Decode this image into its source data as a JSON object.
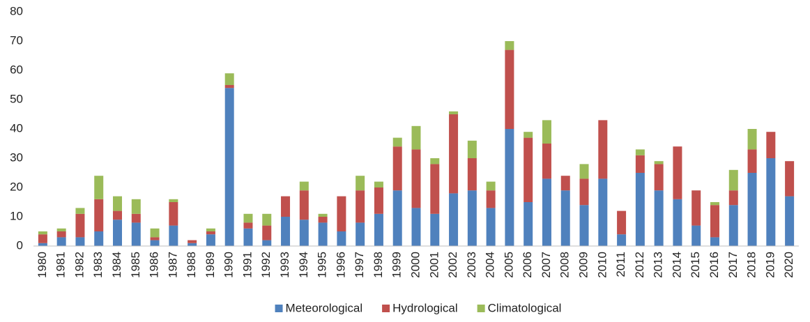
{
  "chart_data": {
    "type": "stacked-bar",
    "categories": [
      "1980",
      "1981",
      "1982",
      "1983",
      "1984",
      "1985",
      "1986",
      "1987",
      "1988",
      "1989",
      "1990",
      "1991",
      "1992",
      "1993",
      "1994",
      "1995",
      "1996",
      "1997",
      "1998",
      "1999",
      "2000",
      "2001",
      "2002",
      "2003",
      "2004",
      "2005",
      "2006",
      "2007",
      "2008",
      "2009",
      "2010",
      "2011",
      "2012",
      "2013",
      "2014",
      "2015",
      "2016",
      "2017",
      "2018",
      "2019",
      "2020"
    ],
    "series": [
      {
        "name": "Meteorological",
        "color": "#4f81bd",
        "values": [
          1,
          3,
          3,
          5,
          9,
          8,
          2,
          7,
          1,
          4,
          54,
          6,
          2,
          10,
          9,
          8,
          5,
          8,
          11,
          19,
          13,
          11,
          18,
          19,
          13,
          40,
          15,
          23,
          19,
          14,
          23,
          4,
          25,
          19,
          16,
          7,
          3,
          14,
          25,
          30,
          17
        ]
      },
      {
        "name": "Hydrological",
        "color": "#c0504d",
        "values": [
          3,
          2,
          8,
          11,
          3,
          3,
          1,
          8,
          1,
          1,
          1,
          2,
          5,
          7,
          10,
          2,
          12,
          11,
          9,
          15,
          20,
          17,
          27,
          11,
          6,
          27,
          22,
          12,
          5,
          9,
          20,
          8,
          6,
          9,
          18,
          12,
          11,
          5,
          8,
          9,
          12
        ]
      },
      {
        "name": "Climatological",
        "color": "#9bbb59",
        "values": [
          1,
          1,
          2,
          8,
          5,
          5,
          3,
          1,
          0,
          1,
          4,
          3,
          4,
          0,
          3,
          1,
          0,
          5,
          2,
          3,
          8,
          2,
          1,
          6,
          3,
          3,
          2,
          8,
          0,
          5,
          0,
          0,
          2,
          1,
          0,
          0,
          1,
          7,
          7,
          0,
          0
        ]
      }
    ],
    "ylim": [
      0,
      80
    ],
    "yticks": [
      0,
      10,
      20,
      30,
      40,
      50,
      60,
      70,
      80
    ],
    "grid": false,
    "legend": "bottom"
  }
}
